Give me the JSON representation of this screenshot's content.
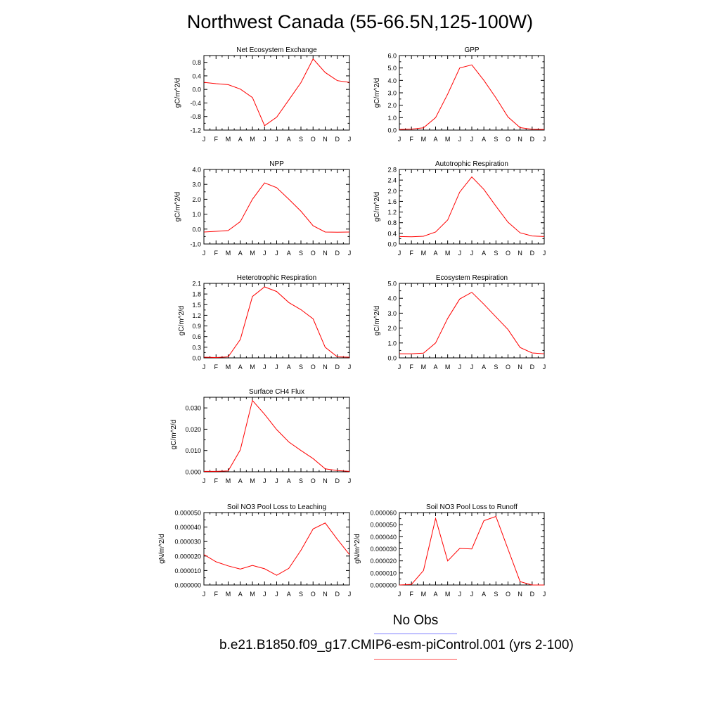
{
  "title": "Northwest Canada (55-66.5N,125-100W)",
  "legend": {
    "no_obs": "No Obs",
    "case_label": "b.e21.B1850.f09_g17.CMIP6-esm-piControl.001 (yrs 2-100)",
    "no_obs_color": "#8080ff",
    "case_color": "#ff0000"
  },
  "chart_data": [
    {
      "type": "line",
      "title": "Net Ecosystem Exchange",
      "ylabel": "gC/m^2/d",
      "categories": [
        "J",
        "F",
        "M",
        "A",
        "M",
        "J",
        "J",
        "A",
        "S",
        "O",
        "N",
        "D",
        "J"
      ],
      "ylim": [
        -1.2,
        1.0
      ],
      "yticks": [
        -1.2,
        -0.8,
        -0.4,
        0.0,
        0.4,
        0.8
      ],
      "ytick_labels": [
        "-1.2",
        "-0.8",
        "-0.4",
        "0.0",
        "0.4",
        "0.8"
      ],
      "series": [
        {
          "values": [
            0.21,
            0.17,
            0.14,
            0.01,
            -0.24,
            -1.07,
            -0.82,
            -0.31,
            0.2,
            0.9,
            0.5,
            0.26,
            0.21
          ]
        }
      ]
    },
    {
      "type": "line",
      "title": "GPP",
      "ylabel": "gC/m^2/d",
      "categories": [
        "J",
        "F",
        "M",
        "A",
        "M",
        "J",
        "J",
        "A",
        "S",
        "O",
        "N",
        "D",
        "J"
      ],
      "ylim": [
        0.0,
        6.0
      ],
      "yticks": [
        0,
        1,
        2,
        3,
        4,
        5,
        6
      ],
      "ytick_labels": [
        "0.0",
        "1.0",
        "2.0",
        "3.0",
        "4.0",
        "5.0",
        "6.0"
      ],
      "series": [
        {
          "values": [
            0.05,
            0.08,
            0.18,
            1.0,
            2.9,
            5.0,
            5.25,
            4.0,
            2.6,
            1.05,
            0.2,
            0.06,
            0.05
          ]
        }
      ]
    },
    {
      "type": "line",
      "title": "NPP",
      "ylabel": "gC/m^2/d",
      "categories": [
        "J",
        "F",
        "M",
        "A",
        "M",
        "J",
        "J",
        "A",
        "S",
        "O",
        "N",
        "D",
        "J"
      ],
      "ylim": [
        -1.0,
        4.0
      ],
      "yticks": [
        -1,
        0,
        1,
        2,
        3,
        4
      ],
      "ytick_labels": [
        "-1.0",
        "0.0",
        "1.0",
        "2.0",
        "3.0",
        "4.0"
      ],
      "series": [
        {
          "values": [
            -0.2,
            -0.15,
            -0.1,
            0.5,
            2.0,
            3.1,
            2.78,
            2.0,
            1.2,
            0.22,
            -0.2,
            -0.21,
            -0.2
          ]
        }
      ]
    },
    {
      "type": "line",
      "title": "Autotrophic Respiration",
      "ylabel": "gC/m^2/d",
      "categories": [
        "J",
        "F",
        "M",
        "A",
        "M",
        "J",
        "J",
        "A",
        "S",
        "O",
        "N",
        "D",
        "J"
      ],
      "ylim": [
        0.0,
        2.8
      ],
      "yticks": [
        0.0,
        0.4,
        0.8,
        1.2,
        1.6,
        2.0,
        2.4,
        2.8
      ],
      "ytick_labels": [
        "0.0",
        "0.4",
        "0.8",
        "1.2",
        "1.6",
        "2.0",
        "2.4",
        "2.8"
      ],
      "series": [
        {
          "values": [
            0.28,
            0.27,
            0.29,
            0.45,
            0.9,
            1.95,
            2.52,
            2.05,
            1.42,
            0.82,
            0.42,
            0.3,
            0.28
          ]
        }
      ]
    },
    {
      "type": "line",
      "title": "Heterotrophic Respiration",
      "ylabel": "gC/m^2/d",
      "categories": [
        "J",
        "F",
        "M",
        "A",
        "M",
        "J",
        "J",
        "A",
        "S",
        "O",
        "N",
        "D",
        "J"
      ],
      "ylim": [
        0.0,
        2.1
      ],
      "yticks": [
        0.0,
        0.3,
        0.6,
        0.9,
        1.2,
        1.5,
        1.8,
        2.1
      ],
      "ytick_labels": [
        "0.0",
        "0.3",
        "0.6",
        "0.9",
        "1.2",
        "1.5",
        "1.8",
        "2.1"
      ],
      "series": [
        {
          "values": [
            0.02,
            0.01,
            0.03,
            0.52,
            1.73,
            2.0,
            1.87,
            1.56,
            1.36,
            1.1,
            0.3,
            0.03,
            0.02
          ]
        }
      ]
    },
    {
      "type": "line",
      "title": "Ecosystem Respiration",
      "ylabel": "gC/m^2/d",
      "categories": [
        "J",
        "F",
        "M",
        "A",
        "M",
        "J",
        "J",
        "A",
        "S",
        "O",
        "N",
        "D",
        "J"
      ],
      "ylim": [
        0.0,
        5.0
      ],
      "yticks": [
        0,
        1,
        2,
        3,
        4,
        5
      ],
      "ytick_labels": [
        "0.0",
        "1.0",
        "2.0",
        "3.0",
        "4.0",
        "5.0"
      ],
      "series": [
        {
          "values": [
            0.28,
            0.28,
            0.32,
            1.0,
            2.65,
            3.95,
            4.4,
            3.6,
            2.75,
            1.9,
            0.7,
            0.33,
            0.28
          ]
        }
      ]
    },
    {
      "type": "line",
      "title": "Surface CH4 Flux",
      "ylabel": "gC/m^2/d",
      "categories": [
        "J",
        "F",
        "M",
        "A",
        "M",
        "J",
        "J",
        "A",
        "S",
        "O",
        "N",
        "D",
        "J"
      ],
      "ylim": [
        0.0,
        0.035
      ],
      "yticks": [
        0.0,
        0.01,
        0.02,
        0.03
      ],
      "ytick_labels": [
        "0.000",
        "0.010",
        "0.020",
        "0.030"
      ],
      "series": [
        {
          "values": [
            0.0002,
            0.0002,
            0.0004,
            0.0103,
            0.0335,
            0.027,
            0.0198,
            0.014,
            0.01,
            0.0062,
            0.0014,
            0.0006,
            0.0002
          ]
        }
      ]
    },
    {
      "type": "line",
      "title": "Soil NO3 Pool Loss to Leaching",
      "ylabel": "gN/m^2/d",
      "categories": [
        "J",
        "F",
        "M",
        "A",
        "M",
        "J",
        "J",
        "A",
        "S",
        "O",
        "N",
        "D",
        "J"
      ],
      "ylim": [
        0.0,
        5e-05
      ],
      "yticks": [
        0.0,
        1e-05,
        2e-05,
        3e-05,
        4e-05,
        5e-05
      ],
      "ytick_labels": [
        "0.000000",
        "0.000010",
        "0.000020",
        "0.000030",
        "0.000040",
        "0.000050"
      ],
      "series": [
        {
          "values": [
            2.1e-05,
            1.6e-05,
            1.32e-05,
            1.1e-05,
            1.35e-05,
            1.12e-05,
            6.7e-06,
            1.15e-05,
            2.4e-05,
            3.87e-05,
            4.28e-05,
            3.15e-05,
            2.1e-05
          ]
        }
      ]
    },
    {
      "type": "line",
      "title": "Soil NO3 Pool Loss to Runoff",
      "ylabel": "gN/m^2/d",
      "categories": [
        "J",
        "F",
        "M",
        "A",
        "M",
        "J",
        "J",
        "A",
        "S",
        "O",
        "N",
        "D",
        "J"
      ],
      "ylim": [
        0.0,
        6e-05
      ],
      "yticks": [
        0.0,
        1e-05,
        2e-05,
        3e-05,
        4e-05,
        5e-05,
        6e-05
      ],
      "ytick_labels": [
        "0.000000",
        "0.000010",
        "0.000020",
        "0.000030",
        "0.000040",
        "0.000050",
        "0.000060"
      ],
      "series": [
        {
          "values": [
            0.0,
            5e-07,
            1.2e-05,
            5.51e-05,
            1.99e-05,
            3.03e-05,
            2.99e-05,
            5.33e-05,
            5.68e-05,
            2.97e-05,
            2.8e-06,
            0.0,
            0.0
          ]
        }
      ]
    }
  ]
}
